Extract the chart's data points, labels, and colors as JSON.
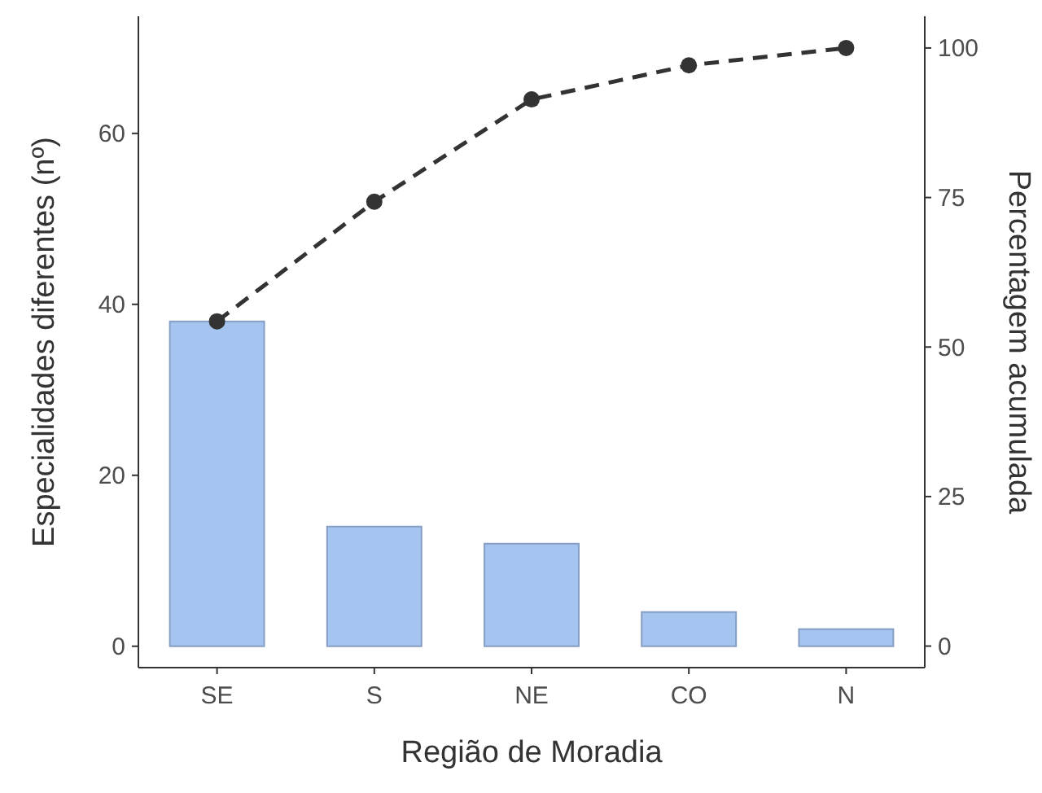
{
  "chart_data": {
    "type": "bar",
    "xlabel": "Região de Moradia",
    "ylabel": "Especialidades diferentes (nº)",
    "y2label": "Percentagem acumulada",
    "categories": [
      "SE",
      "S",
      "NE",
      "CO",
      "N"
    ],
    "series": [
      {
        "color": "#a6c4f0",
        "values": [
          38,
          14,
          12,
          4,
          2
        ]
      },
      {
        "type": "line",
        "axis": "y2",
        "color": "#333333",
        "values": [
          54.3,
          74.3,
          91.4,
          97.1,
          100
        ],
        "marker": "circle",
        "line_style": "dashed"
      }
    ],
    "ylim": [
      -2.5,
      73.7
    ],
    "yticks": [
      0,
      20,
      40,
      60
    ],
    "y2lim": [
      -3.6,
      105.3
    ],
    "y2ticks": [
      0,
      25,
      50,
      75,
      100
    ],
    "grid": false
  }
}
